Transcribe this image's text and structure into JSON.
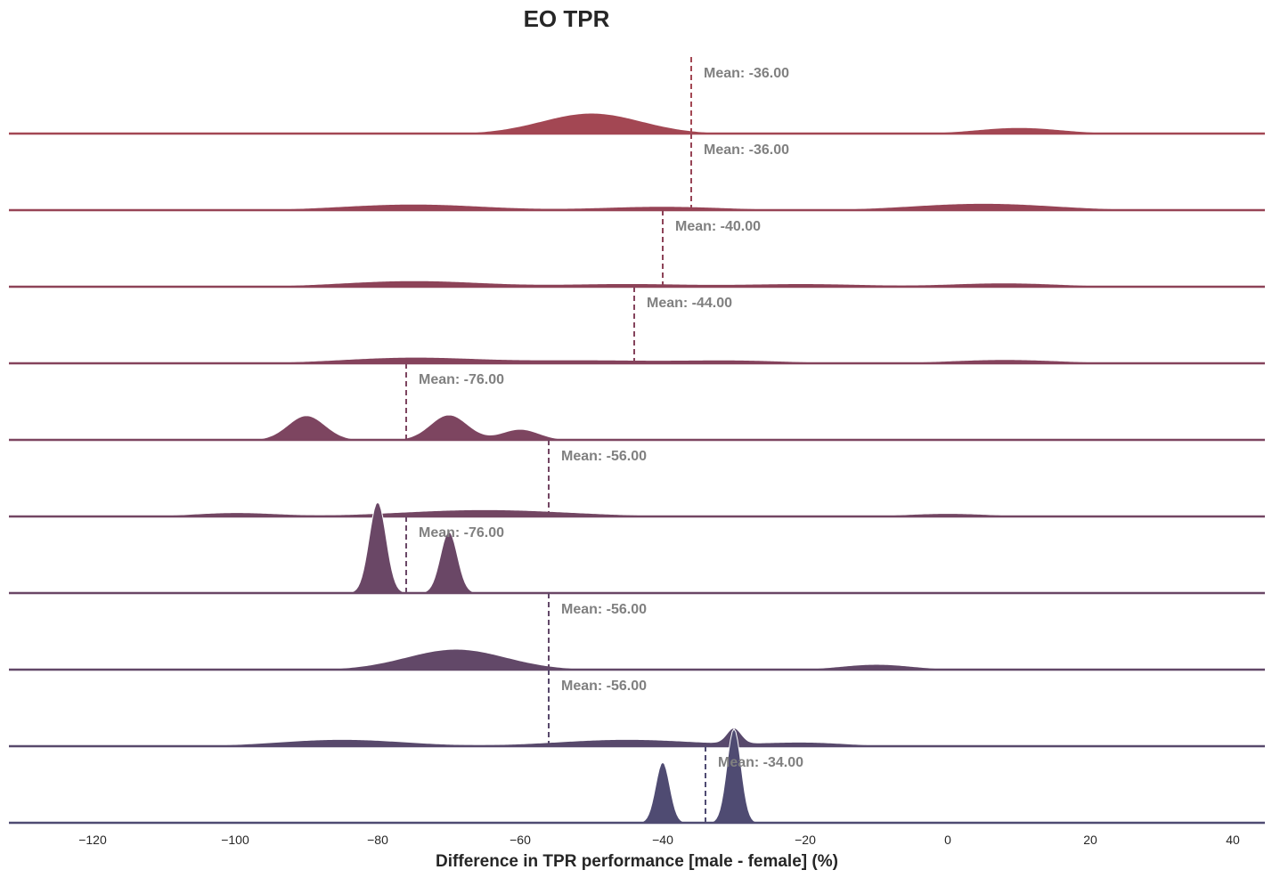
{
  "chart_data": {
    "type": "area",
    "subtype": "ridgeline-kde",
    "title": "EO TPR",
    "xlabel": "Difference in TPR performance [male - female] (%)",
    "ylabel": "",
    "xlim": [
      -132,
      45
    ],
    "xticks": [
      -120,
      -100,
      -80,
      -60,
      -40,
      -20,
      0,
      20,
      40
    ],
    "tick_labels": [
      "−120",
      "−100",
      "−80",
      "−60",
      "−40",
      "−20",
      "0",
      "20",
      "40"
    ],
    "grid": false,
    "legend": "none",
    "ridges": [
      {
        "color": "#a34753",
        "mean": -36,
        "mean_label": "Mean: -36.00",
        "peaks": [
          [
            -50,
            7,
            0.27
          ],
          [
            10,
            6,
            0.08
          ]
        ]
      },
      {
        "color": "#974456",
        "mean": -36,
        "mean_label": "Mean: -36.00",
        "peaks": [
          [
            -75,
            10,
            0.08
          ],
          [
            -40,
            9,
            0.05
          ],
          [
            5,
            10,
            0.09
          ]
        ]
      },
      {
        "color": "#8d4358",
        "mean": -40,
        "mean_label": "Mean: -40.00",
        "peaks": [
          [
            -75,
            10,
            0.08
          ],
          [
            -45,
            9,
            0.04
          ],
          [
            -20,
            9,
            0.04
          ],
          [
            8,
            8,
            0.05
          ]
        ]
      },
      {
        "color": "#85435c",
        "mean": -44,
        "mean_label": "Mean: -44.00",
        "peaks": [
          [
            -75,
            10,
            0.08
          ],
          [
            -50,
            9,
            0.04
          ],
          [
            -30,
            8,
            0.04
          ],
          [
            8,
            8,
            0.05
          ]
        ]
      },
      {
        "color": "#7d4560",
        "mean": -76,
        "mean_label": "Mean: -76.00",
        "peaks": [
          [
            -90,
            2.6,
            0.32
          ],
          [
            -70,
            2.6,
            0.33
          ],
          [
            -60,
            2.6,
            0.14
          ]
        ]
      },
      {
        "color": "#734663",
        "mean": -56,
        "mean_label": "Mean: -56.00",
        "peaks": [
          [
            -100,
            6,
            0.05
          ],
          [
            -65,
            12,
            0.09
          ],
          [
            0,
            6,
            0.04
          ]
        ]
      },
      {
        "color": "#6a4766",
        "mean": -76,
        "mean_label": "Mean: -76.00",
        "peaks": [
          [
            -80,
            1.2,
            1.2
          ],
          [
            -70,
            1.2,
            0.81
          ]
        ]
      },
      {
        "color": "#624868",
        "mean": -56,
        "mean_label": "Mean: -56.00",
        "peaks": [
          [
            -69,
            7,
            0.27
          ],
          [
            -10,
            5,
            0.07
          ]
        ]
      },
      {
        "color": "#58496c",
        "mean": -56,
        "mean_label": "Mean: -56.00",
        "peaks": [
          [
            -85,
            9,
            0.09
          ],
          [
            -45,
            10,
            0.09
          ],
          [
            -20,
            6,
            0.05
          ],
          [
            -30,
            1.0,
            0.2
          ]
        ]
      },
      {
        "color": "#4f4b72",
        "mean": -34,
        "mean_label": "Mean: -34.00",
        "peaks": [
          [
            -40,
            1.0,
            0.8
          ],
          [
            -30,
            1.0,
            1.24
          ]
        ]
      }
    ]
  }
}
